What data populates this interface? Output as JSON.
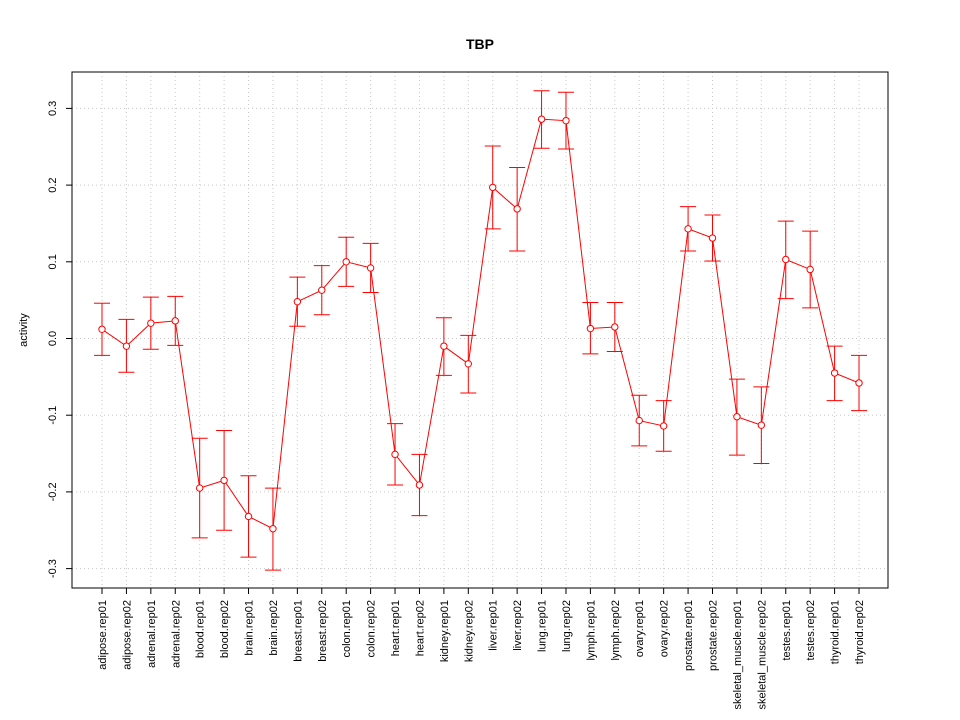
{
  "chart_data": {
    "type": "line",
    "title": "TBP",
    "xlabel": "",
    "ylabel": "activity",
    "ylim": [
      -0.325,
      0.35
    ],
    "yticks": [
      -0.3,
      -0.2,
      -0.1,
      0.0,
      0.1,
      0.2,
      0.3
    ],
    "ytick_labels": [
      "-0.3",
      "-0.2",
      "-0.1",
      "0.0",
      "0.1",
      "0.2",
      "0.3"
    ],
    "grid": true,
    "categories": [
      "adipose.rep01",
      "adipose.rep02",
      "adrenal.rep01",
      "adrenal.rep02",
      "blood.rep01",
      "blood.rep02",
      "brain.rep01",
      "brain.rep02",
      "breast.rep01",
      "breast.rep02",
      "colon.rep01",
      "colon.rep02",
      "heart.rep01",
      "heart.rep02",
      "kidney.rep01",
      "kidney.rep02",
      "liver.rep01",
      "liver.rep02",
      "lung.rep01",
      "lung.rep02",
      "lymph.rep01",
      "lymph.rep02",
      "ovary.rep01",
      "ovary.rep02",
      "prostate.rep01",
      "prostate.rep02",
      "skeletal_muscle.rep01",
      "skeletal_muscle.rep02",
      "testes.rep01",
      "testes.rep02",
      "thyroid.rep01",
      "thyroid.rep02"
    ],
    "series": [
      {
        "values": [
          0.012,
          -0.01,
          0.02,
          0.023,
          -0.195,
          -0.185,
          -0.232,
          -0.248,
          0.048,
          0.063,
          0.1,
          0.092,
          -0.151,
          -0.191,
          -0.01,
          -0.033,
          0.197,
          0.169,
          0.286,
          0.284,
          0.013,
          0.015,
          -0.107,
          -0.114,
          0.143,
          0.131,
          -0.102,
          -0.113,
          0.103,
          0.09,
          -0.045,
          -0.058
        ],
        "lower": [
          -0.022,
          -0.044,
          -0.014,
          -0.009,
          -0.26,
          -0.25,
          -0.285,
          -0.302,
          0.016,
          0.031,
          0.068,
          0.06,
          -0.191,
          -0.231,
          -0.048,
          -0.071,
          0.143,
          0.114,
          0.248,
          0.247,
          -0.02,
          -0.017,
          -0.14,
          -0.147,
          0.114,
          0.101,
          -0.152,
          -0.163,
          0.052,
          0.04,
          -0.081,
          -0.094
        ],
        "upper": [
          0.046,
          0.025,
          0.054,
          0.055,
          -0.13,
          -0.12,
          -0.179,
          -0.195,
          0.08,
          0.095,
          0.132,
          0.124,
          -0.111,
          -0.151,
          0.027,
          0.004,
          0.251,
          0.223,
          0.323,
          0.321,
          0.047,
          0.047,
          -0.074,
          -0.081,
          0.172,
          0.161,
          -0.053,
          -0.063,
          0.153,
          0.14,
          -0.01,
          -0.022
        ]
      }
    ],
    "colors": {
      "series": "#ff0000",
      "grid": "#c8c8c8",
      "axis": "#000000"
    }
  }
}
